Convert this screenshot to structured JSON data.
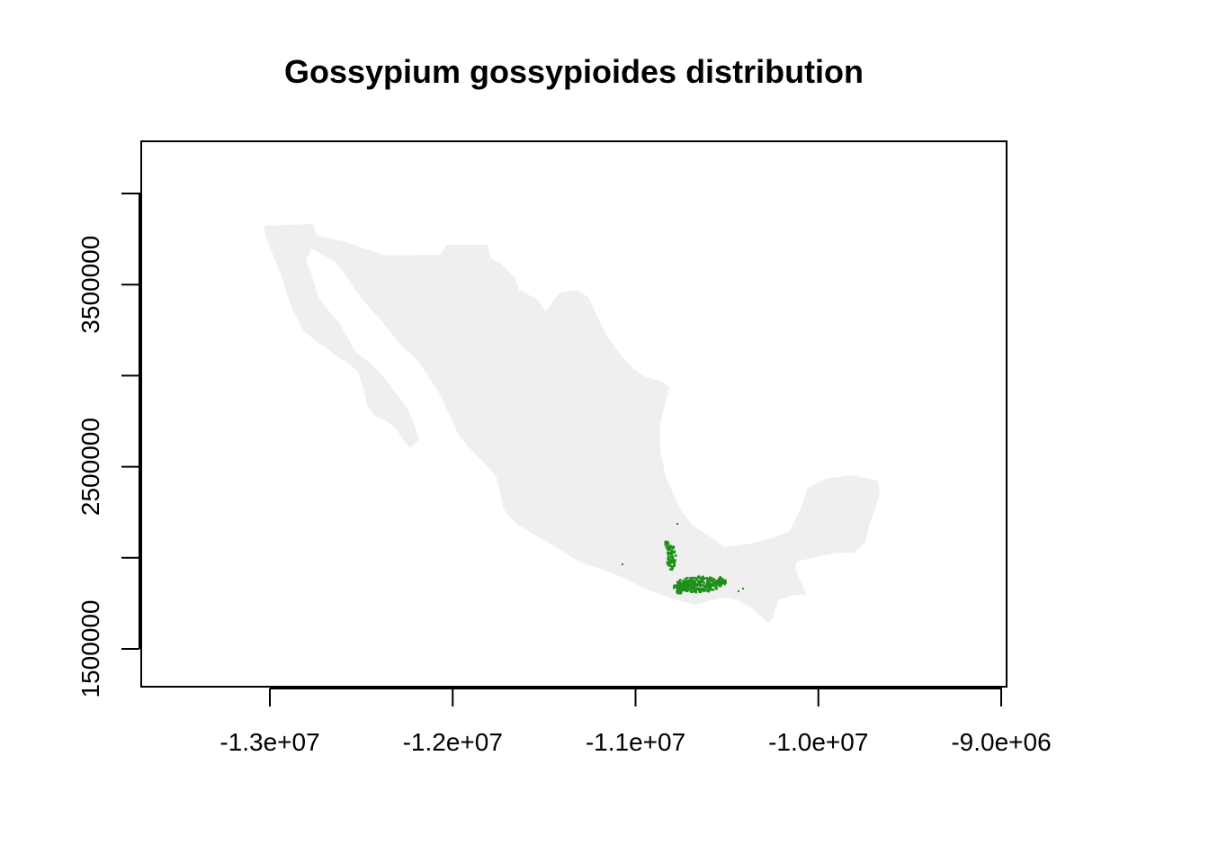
{
  "title": "Gossypium gossypioides distribution",
  "colors": {
    "land": "#efefef",
    "presence": "#1f8f1a",
    "axis": "#000000",
    "background": "#ffffff"
  },
  "map_data": {
    "type": "raster-map",
    "region": "Mexico",
    "x_ticks": [
      -13000000,
      -12000000,
      -11000000,
      -10000000,
      -9000000
    ],
    "x_tick_labels": [
      "-1.3e+07",
      "-1.2e+07",
      "-1.1e+07",
      "-1.0e+07",
      "-9.0e+06"
    ],
    "y_ticks": [
      1500000,
      2000000,
      2500000,
      3000000,
      3500000,
      4000000
    ],
    "y_tick_labels": [
      "1500000",
      "",
      "2500000",
      "",
      "3500000",
      ""
    ],
    "xlim": [
      -13700000,
      -8950000
    ],
    "ylim": [
      1300000,
      4280000
    ],
    "presence_area": "Oaxaca / Veracruz, southern Mexico"
  }
}
